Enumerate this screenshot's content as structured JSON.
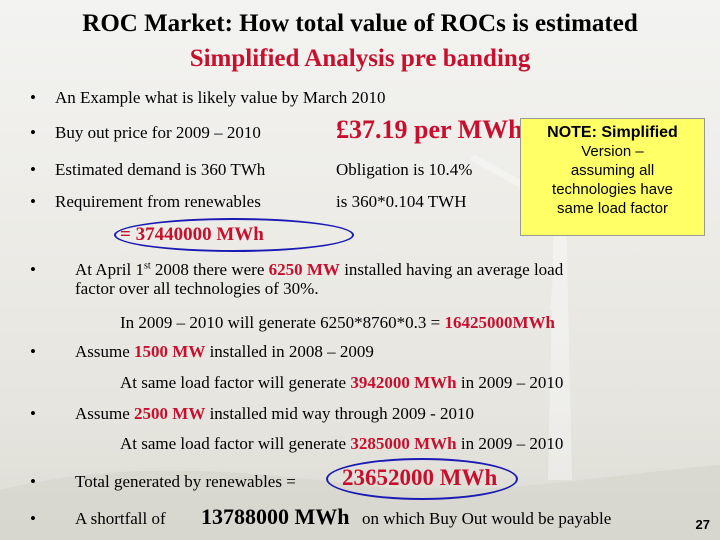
{
  "title": {
    "line1": "ROC Market: How total value of ROCs is estimated",
    "line2": "Simplified Analysis pre banding"
  },
  "bullets": {
    "b1": "An Example what is likely value by March 2010",
    "b2_label": "Buy out price for 2009 – 2010",
    "b2_value": "£37.19 per MWh",
    "b3_a": "Estimated demand is 360 TWh",
    "b3_b": "Obligation is 10.4%",
    "b4_a": "Requirement from renewables",
    "b4_b": "is 360*0.104  TWH",
    "b4_result": "=  37440000 MWh",
    "b5_pre": "At April 1",
    "b5_sup": "st",
    "b5_mid": " 2008 there were ",
    "b5_red": "6250 MW",
    "b5_post": " installed having an average load",
    "b5_line2": "factor  over all technologies of 30%.",
    "b5_calc_pre": "In 2009 – 2010 will generate 6250*8760*0.3 = ",
    "b5_calc_red": "16425000MWh",
    "b6_pre": "Assume ",
    "b6_red": "1500 MW",
    "b6_post": " installed in 2008 – 2009",
    "b6_calc_pre": "At same load factor will generate  ",
    "b6_calc_red": "3942000 MWh",
    "b6_calc_post": " in 2009 – 2010",
    "b7_pre": "Assume ",
    "b7_red": "2500 MW",
    "b7_post": " installed mid way through 2009 - 2010",
    "b7_calc_pre": "At same load factor will generate  ",
    "b7_calc_red": "3285000 MWh",
    "b7_calc_post": " in 2009 – 2010",
    "b8_pre": "Total generated by renewables = ",
    "b8_value": "23652000 MWh",
    "b9_pre": "A shortfall of ",
    "b9_value": "13788000 MWh",
    "b9_post": " on which Buy Out would be payable"
  },
  "note": {
    "l1": "NOTE:  Simplified",
    "l2": "Version –",
    "l3": "assuming all",
    "l4": "technologies have",
    "l5": "same load factor"
  },
  "page_number": "27",
  "colors": {
    "red": "#c8102e",
    "oval": "#1a1ab4",
    "note_bg": "#ffff66"
  }
}
